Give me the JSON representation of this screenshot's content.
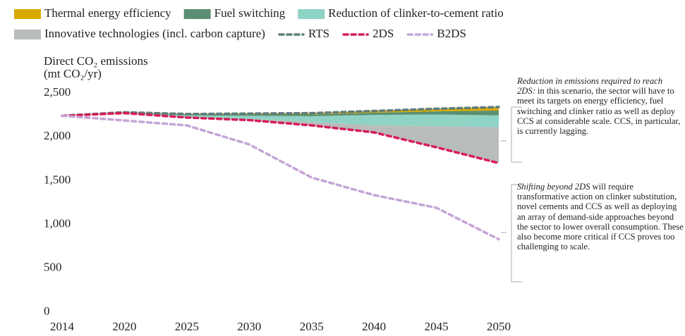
{
  "chart_data": {
    "type": "line",
    "y_label": [
      "Direct CO₂ emissions",
      "(mt CO₂/yr)"
    ],
    "categories": [
      "2014",
      "2020",
      "2025",
      "2030",
      "2035",
      "2040",
      "2045",
      "2050"
    ],
    "ylim": [
      0,
      2500
    ],
    "yticks": [
      0,
      500,
      {
        "value": 1000,
        "label": "1,000"
      },
      {
        "value": 1500,
        "label": "1,500"
      },
      {
        "value": 2000,
        "label": "2,000"
      },
      {
        "value": 2500,
        "label": "2,500"
      }
    ],
    "grid": false,
    "stack_base": 5,
    "series": [
      {
        "name": "Thermal energy efficiency",
        "type": "area",
        "color": "#d9a900",
        "values": [
          0,
          2,
          5,
          10,
          15,
          20,
          30,
          40
        ]
      },
      {
        "name": "Fuel switching",
        "type": "area",
        "color": "#5a8f73",
        "values": [
          0,
          3,
          10,
          15,
          20,
          25,
          35,
          55
        ]
      },
      {
        "name": "Reduction of clinker-to-cement ratio",
        "type": "area",
        "color": "#8fd3c4",
        "values": [
          0,
          5,
          20,
          35,
          65,
          120,
          135,
          135
        ]
      },
      {
        "name": "Innovative technologies (incl. carbon capture)",
        "type": "area",
        "color": "#b8bcbb",
        "values": [
          0,
          0,
          5,
          15,
          40,
          80,
          240,
          410
        ]
      },
      {
        "name": "RTS",
        "type": "line",
        "color": "#5f7d7b",
        "values": [
          2240,
          2280,
          2260,
          2265,
          2270,
          2295,
          2320,
          2340
        ]
      },
      {
        "name": "2DS",
        "type": "line",
        "color": "#d81b5a",
        "values": [
          2240,
          2270,
          2220,
          2190,
          2130,
          2050,
          1880,
          1700
        ]
      },
      {
        "name": "B2DS",
        "type": "line",
        "color": "#c4a5d6",
        "values": [
          2240,
          2186,
          2130,
          1913,
          1535,
          1335,
          1190,
          830
        ]
      }
    ],
    "annotations": [
      {
        "lead": "Reduction in emissions required to reach 2DS:",
        "text": "in this scenario, the sector will have to meet its targets on energy efficiency, fuel switching and clinker ratio as well as deploy CCS at considerable scale. CCS, in particular, is currently lagging."
      },
      {
        "lead": "Shifting beyond 2DS",
        "text": "will require transformative action on clinker substitution, novel cements and CCS as well as deploying an array of demand-side approaches beyond the sector to lower overall consumption. These also become more critical if CCS proves too challenging to scale."
      }
    ]
  }
}
